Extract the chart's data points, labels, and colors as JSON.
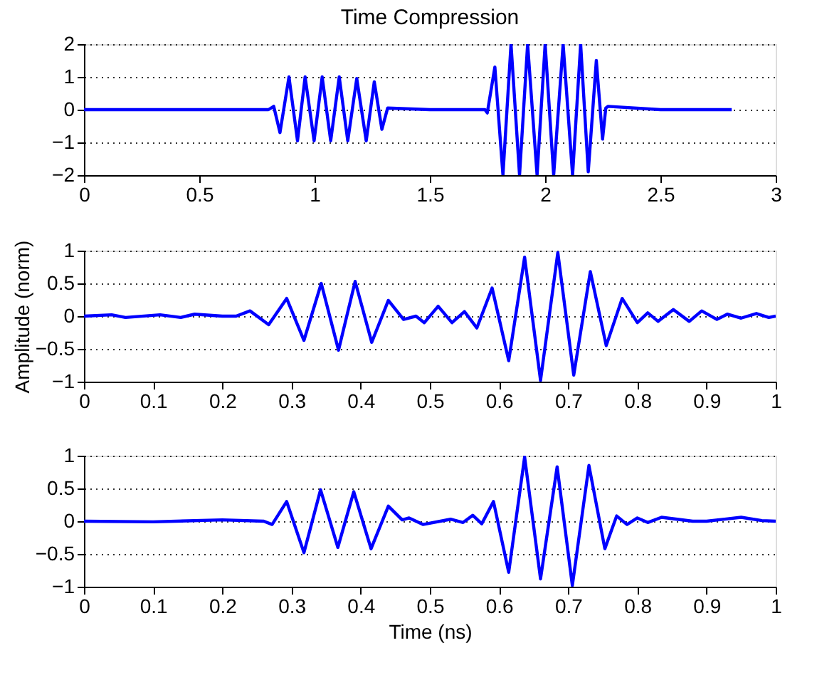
{
  "chart_data": [
    {
      "type": "line",
      "title": "Time Compression",
      "xlim": [
        0,
        3
      ],
      "xticks": [
        0,
        0.5,
        1,
        1.5,
        2,
        2.5,
        3
      ],
      "ylim": [
        -2,
        2
      ],
      "yticks": [
        -2,
        -1,
        0,
        1,
        2
      ],
      "grid": "y",
      "line_style": "solid",
      "marker": "none",
      "series": [
        {
          "color": "#0000ff",
          "x": [
            0,
            0.4,
            0.8,
            0.823,
            0.85,
            0.889,
            0.926,
            0.959,
            0.998,
            1.033,
            1.07,
            1.107,
            1.144,
            1.183,
            1.224,
            1.259,
            1.292,
            1.317,
            1.5,
            1.739,
            1.749,
            1.782,
            1.817,
            1.852,
            1.889,
            1.924,
            1.965,
            2.0,
            2.037,
            2.078,
            2.119,
            2.154,
            2.187,
            2.222,
            2.249,
            2.263,
            2.273,
            2.5,
            2.809
          ],
          "values": [
            0,
            0,
            0,
            0.1,
            -0.7,
            1.0,
            -0.95,
            1.0,
            -0.95,
            1.0,
            -0.95,
            1.0,
            -0.95,
            0.95,
            -0.95,
            0.85,
            -0.6,
            0.05,
            0,
            0,
            -0.1,
            1.3,
            -2,
            2,
            -2,
            2,
            -2,
            2,
            -2,
            2,
            -2,
            2,
            -1.9,
            1.5,
            -0.9,
            0.05,
            0.1,
            0,
            0
          ]
        }
      ]
    },
    {
      "type": "line",
      "ylabel": "Amplitude (norm)",
      "xlim": [
        0,
        1
      ],
      "xticks": [
        0,
        0.1,
        0.2,
        0.3,
        0.4,
        0.5,
        0.6,
        0.7,
        0.8,
        0.9,
        1
      ],
      "ylim": [
        -1,
        1
      ],
      "yticks": [
        -1,
        -0.5,
        0,
        0.5,
        1
      ],
      "grid": "y",
      "line_style": "solid",
      "marker": "none",
      "series": [
        {
          "color": "#0000ff",
          "x": [
            0,
            0.04,
            0.06,
            0.11,
            0.14,
            0.16,
            0.2,
            0.22,
            0.24,
            0.267,
            0.293,
            0.318,
            0.343,
            0.368,
            0.392,
            0.416,
            0.44,
            0.462,
            0.48,
            0.492,
            0.512,
            0.532,
            0.55,
            0.568,
            0.59,
            0.614,
            0.637,
            0.66,
            0.685,
            0.708,
            0.732,
            0.755,
            0.778,
            0.8,
            0.815,
            0.83,
            0.852,
            0.875,
            0.893,
            0.915,
            0.93,
            0.95,
            0.972,
            0.99,
            1.0
          ],
          "values": [
            0,
            0.02,
            -0.02,
            0.02,
            -0.02,
            0.03,
            0,
            0,
            0.08,
            -0.13,
            0.27,
            -0.37,
            0.5,
            -0.52,
            0.53,
            -0.4,
            0.24,
            -0.05,
            0,
            -0.1,
            0.15,
            -0.1,
            0.07,
            -0.18,
            0.43,
            -0.68,
            0.9,
            -0.98,
            0.97,
            -0.9,
            0.68,
            -0.45,
            0.27,
            -0.1,
            0.05,
            -0.08,
            0.1,
            -0.08,
            0.08,
            -0.05,
            0.03,
            -0.03,
            0.04,
            -0.02,
            0
          ]
        }
      ]
    },
    {
      "type": "line",
      "xlabel": "Time (ns)",
      "xlim": [
        0,
        1
      ],
      "xticks": [
        0,
        0.1,
        0.2,
        0.3,
        0.4,
        0.5,
        0.6,
        0.7,
        0.8,
        0.9,
        1
      ],
      "ylim": [
        -1,
        1
      ],
      "yticks": [
        -1,
        -0.5,
        0,
        0.5,
        1
      ],
      "grid": "y",
      "line_style": "solid",
      "marker": "none",
      "series": [
        {
          "color": "#0000ff",
          "x": [
            0,
            0.1,
            0.2,
            0.26,
            0.272,
            0.293,
            0.318,
            0.342,
            0.367,
            0.39,
            0.415,
            0.44,
            0.46,
            0.47,
            0.49,
            0.53,
            0.548,
            0.562,
            0.575,
            0.592,
            0.614,
            0.637,
            0.66,
            0.684,
            0.706,
            0.73,
            0.753,
            0.77,
            0.785,
            0.8,
            0.815,
            0.835,
            0.88,
            0.9,
            0.95,
            0.98,
            1
          ],
          "values": [
            0,
            -0.01,
            0.02,
            0,
            -0.05,
            0.3,
            -0.48,
            0.48,
            -0.4,
            0.45,
            -0.42,
            0.23,
            0.02,
            0.05,
            -0.05,
            0.03,
            -0.02,
            0.09,
            -0.04,
            0.3,
            -0.78,
            0.98,
            -0.88,
            0.83,
            -0.98,
            0.85,
            -0.42,
            0.08,
            -0.05,
            0.05,
            -0.02,
            0.06,
            0,
            0,
            0.06,
            0.01,
            0
          ]
        }
      ]
    }
  ]
}
